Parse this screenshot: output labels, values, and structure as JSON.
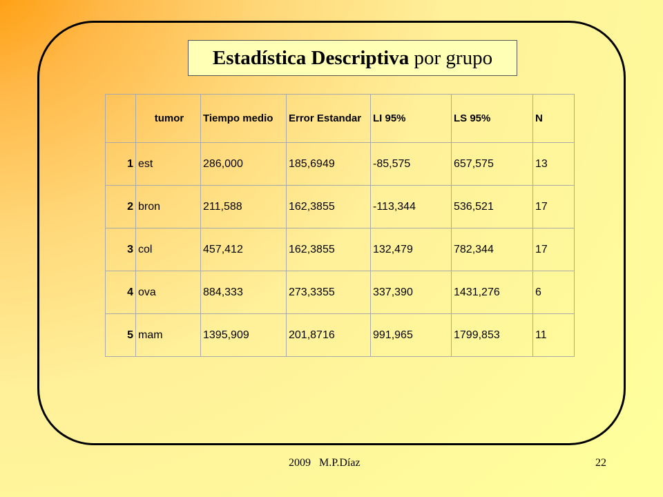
{
  "slide": {
    "title_bold": "Estadística Descriptiva",
    "title_normal": " por grupo",
    "footer_left": "2009   M.P.Díaz",
    "page_number": "22"
  },
  "table": {
    "headers": [
      "",
      "tumor",
      "Tiempo medio",
      "Error Estandar",
      "LI 95%",
      "LS 95%",
      "N"
    ],
    "rows": [
      [
        "1",
        "est",
        "286,000",
        "185,6949",
        "-85,575",
        "657,575",
        "13"
      ],
      [
        "2",
        "bron",
        "211,588",
        "162,3855",
        "-113,344",
        "536,521",
        "17"
      ],
      [
        "3",
        "col",
        "457,412",
        "162,3855",
        "132,479",
        "782,344",
        "17"
      ],
      [
        "4",
        "ova",
        "884,333",
        "273,3355",
        "337,390",
        "1431,276",
        "6"
      ],
      [
        "5",
        "mam",
        "1395,909",
        "201,8716",
        "991,965",
        "1799,853",
        "11"
      ]
    ]
  },
  "colors": {
    "background_orange": "#ff9700",
    "background_yellow": "#ffff9c",
    "title_box_fill": "#ffffb6",
    "grid_line": "#a9a9a9"
  }
}
